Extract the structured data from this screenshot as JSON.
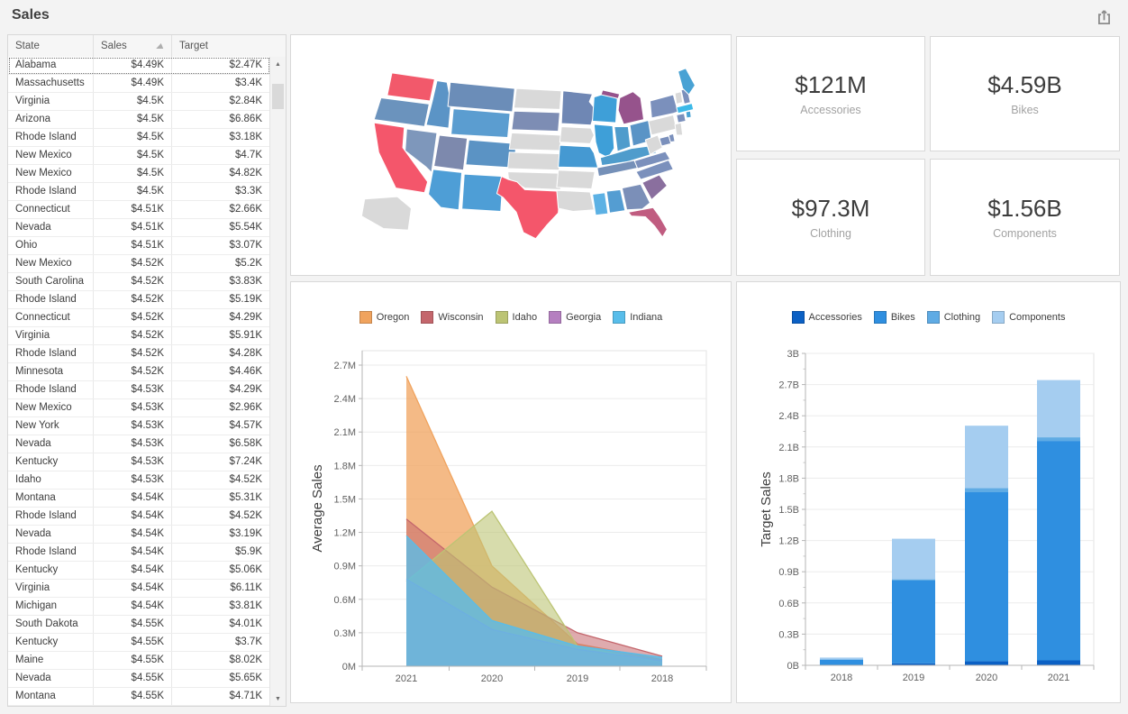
{
  "header": {
    "title": "Sales",
    "export_icon": "export"
  },
  "grid": {
    "columns": [
      "State",
      "Sales",
      "Target"
    ],
    "sort": {
      "column": "Sales",
      "direction": "asc"
    },
    "rows": [
      [
        "Alabama",
        "$4.49K",
        "$2.47K"
      ],
      [
        "Massachusetts",
        "$4.49K",
        "$3.4K"
      ],
      [
        "Virginia",
        "$4.5K",
        "$2.84K"
      ],
      [
        "Arizona",
        "$4.5K",
        "$6.86K"
      ],
      [
        "Rhode Island",
        "$4.5K",
        "$3.18K"
      ],
      [
        "New Mexico",
        "$4.5K",
        "$4.7K"
      ],
      [
        "New Mexico",
        "$4.5K",
        "$4.82K"
      ],
      [
        "Rhode Island",
        "$4.5K",
        "$3.3K"
      ],
      [
        "Connecticut",
        "$4.51K",
        "$2.66K"
      ],
      [
        "Nevada",
        "$4.51K",
        "$5.54K"
      ],
      [
        "Ohio",
        "$4.51K",
        "$3.07K"
      ],
      [
        "New Mexico",
        "$4.52K",
        "$5.2K"
      ],
      [
        "South Carolina",
        "$4.52K",
        "$3.83K"
      ],
      [
        "Rhode Island",
        "$4.52K",
        "$5.19K"
      ],
      [
        "Connecticut",
        "$4.52K",
        "$4.29K"
      ],
      [
        "Virginia",
        "$4.52K",
        "$5.91K"
      ],
      [
        "Rhode Island",
        "$4.52K",
        "$4.28K"
      ],
      [
        "Minnesota",
        "$4.52K",
        "$4.46K"
      ],
      [
        "Rhode Island",
        "$4.53K",
        "$4.29K"
      ],
      [
        "New Mexico",
        "$4.53K",
        "$2.96K"
      ],
      [
        "New York",
        "$4.53K",
        "$4.57K"
      ],
      [
        "Nevada",
        "$4.53K",
        "$6.58K"
      ],
      [
        "Kentucky",
        "$4.53K",
        "$7.24K"
      ],
      [
        "Idaho",
        "$4.53K",
        "$4.52K"
      ],
      [
        "Montana",
        "$4.54K",
        "$5.31K"
      ],
      [
        "Rhode Island",
        "$4.54K",
        "$4.52K"
      ],
      [
        "Nevada",
        "$4.54K",
        "$3.19K"
      ],
      [
        "Rhode Island",
        "$4.54K",
        "$5.9K"
      ],
      [
        "Kentucky",
        "$4.54K",
        "$5.06K"
      ],
      [
        "Virginia",
        "$4.54K",
        "$6.11K"
      ],
      [
        "Michigan",
        "$4.54K",
        "$3.81K"
      ],
      [
        "South Dakota",
        "$4.55K",
        "$4.01K"
      ],
      [
        "Kentucky",
        "$4.55K",
        "$3.7K"
      ],
      [
        "Maine",
        "$4.55K",
        "$8.02K"
      ],
      [
        "Nevada",
        "$4.55K",
        "$5.65K"
      ],
      [
        "Montana",
        "$4.55K",
        "$4.71K"
      ]
    ]
  },
  "kpis": [
    {
      "value": "$121M",
      "label": "Accessories"
    },
    {
      "value": "$4.59B",
      "label": "Bikes"
    },
    {
      "value": "$97.3M",
      "label": "Clothing"
    },
    {
      "value": "$1.56B",
      "label": "Components"
    }
  ],
  "map": {
    "no_data_color": "#d9d9d9",
    "states": [
      {
        "id": "WA",
        "color": "#f2596b"
      },
      {
        "id": "OR",
        "color": "#6b93bd"
      },
      {
        "id": "CA",
        "color": "#f4566b"
      },
      {
        "id": "NV",
        "color": "#7e97bb"
      },
      {
        "id": "ID",
        "color": "#5b94c6"
      },
      {
        "id": "MT",
        "color": "#6b8db8"
      },
      {
        "id": "WY",
        "color": "#5b9dd0"
      },
      {
        "id": "UT",
        "color": "#7d89ad"
      },
      {
        "id": "CO",
        "color": "#5b93c4"
      },
      {
        "id": "AZ",
        "color": "#4e9ed6"
      },
      {
        "id": "NM",
        "color": "#4e9ed6"
      },
      {
        "id": "ND",
        "color": "#d9d9d9"
      },
      {
        "id": "SD",
        "color": "#7d8db4"
      },
      {
        "id": "NE",
        "color": "#d9d9d9"
      },
      {
        "id": "KS",
        "color": "#d9d9d9"
      },
      {
        "id": "OK",
        "color": "#d9d9d9"
      },
      {
        "id": "TX",
        "color": "#f4566b"
      },
      {
        "id": "MN",
        "color": "#6f87b4"
      },
      {
        "id": "IA",
        "color": "#d9d9d9"
      },
      {
        "id": "MO",
        "color": "#4599d2"
      },
      {
        "id": "AR",
        "color": "#d9d9d9"
      },
      {
        "id": "LA",
        "color": "#d9d9d9"
      },
      {
        "id": "WI",
        "color": "#3e9fd8"
      },
      {
        "id": "IL",
        "color": "#3e9fd8"
      },
      {
        "id": "MI",
        "color": "#96538c"
      },
      {
        "id": "IN",
        "color": "#4f9ccc"
      },
      {
        "id": "OH",
        "color": "#5a94c6"
      },
      {
        "id": "KY",
        "color": "#4f9ccc"
      },
      {
        "id": "TN",
        "color": "#7590b8"
      },
      {
        "id": "MS",
        "color": "#5cb1e4"
      },
      {
        "id": "AL",
        "color": "#549dd2"
      },
      {
        "id": "GA",
        "color": "#7b8fb8"
      },
      {
        "id": "FL",
        "color": "#c05c80"
      },
      {
        "id": "SC",
        "color": "#8a6f9e"
      },
      {
        "id": "NC",
        "color": "#7b90bc"
      },
      {
        "id": "VA",
        "color": "#7b90bc"
      },
      {
        "id": "WV",
        "color": "#d9d9d9"
      },
      {
        "id": "PA",
        "color": "#d9d9d9"
      },
      {
        "id": "NY",
        "color": "#7b90bc"
      },
      {
        "id": "VT",
        "color": "#d9d9d9"
      },
      {
        "id": "NH",
        "color": "#7b90bc"
      },
      {
        "id": "ME",
        "color": "#49a2d4"
      },
      {
        "id": "MA",
        "color": "#3cb9e8"
      },
      {
        "id": "CT",
        "color": "#7b90bc"
      },
      {
        "id": "RI",
        "color": "#49a2d4"
      },
      {
        "id": "NJ",
        "color": "#d9d9d9"
      },
      {
        "id": "DE",
        "color": "#7b90bc"
      },
      {
        "id": "MD",
        "color": "#7b90bc"
      },
      {
        "id": "AK",
        "color": "#d9d9d9"
      }
    ]
  },
  "chart_data": [
    {
      "type": "area",
      "title": "",
      "x": [
        "2021",
        "2020",
        "2019",
        "2018"
      ],
      "ylabel": "Average Sales",
      "ylim": [
        0,
        2700000
      ],
      "ytick_step": 300000,
      "ytick_labels": [
        "0M",
        "0.3M",
        "0.6M",
        "0.9M",
        "1.2M",
        "1.5M",
        "1.8M",
        "2.1M",
        "2.4M",
        "2.7M"
      ],
      "grid": true,
      "legend_position": "top",
      "series": [
        {
          "name": "Oregon",
          "color": "#f0a35e",
          "opacity": 0.75,
          "values": [
            2600000,
            900000,
            200000,
            60000
          ]
        },
        {
          "name": "Wisconsin",
          "color": "#c4666c",
          "opacity": 0.55,
          "values": [
            1320000,
            710000,
            300000,
            90000
          ]
        },
        {
          "name": "Idaho",
          "color": "#bcc474",
          "opacity": 0.6,
          "values": [
            760000,
            1390000,
            180000,
            30000
          ]
        },
        {
          "name": "Georgia",
          "color": "#b57fc0",
          "opacity": 0.5,
          "values": [
            780000,
            330000,
            150000,
            50000
          ]
        },
        {
          "name": "Indiana",
          "color": "#58bdea",
          "opacity": 0.78,
          "values": [
            1170000,
            410000,
            180000,
            80000
          ]
        }
      ]
    },
    {
      "type": "bar",
      "stacked": true,
      "title": "",
      "x": [
        "2018",
        "2019",
        "2020",
        "2021"
      ],
      "ylabel": "Target Sales",
      "ylim": [
        0,
        3000000000
      ],
      "ytick_step": 300000000,
      "ytick_labels": [
        "0B",
        "0.3B",
        "0.6B",
        "0.9B",
        "1.2B",
        "1.5B",
        "1.8B",
        "2.1B",
        "2.4B",
        "2.7B",
        "3B"
      ],
      "grid": true,
      "legend_position": "top",
      "series": [
        {
          "name": "Accessories",
          "color": "#0b60c4",
          "values": [
            3000000,
            20000000,
            40000000,
            48000000
          ]
        },
        {
          "name": "Bikes",
          "color": "#2f8fe0",
          "values": [
            52000000,
            795000000,
            1625000000,
            2110000000
          ]
        },
        {
          "name": "Clothing",
          "color": "#5fabe4",
          "values": [
            4000000,
            12000000,
            40000000,
            35000000
          ]
        },
        {
          "name": "Components",
          "color": "#a5cdf0",
          "values": [
            16000000,
            390000000,
            600000000,
            550000000
          ]
        }
      ]
    }
  ]
}
